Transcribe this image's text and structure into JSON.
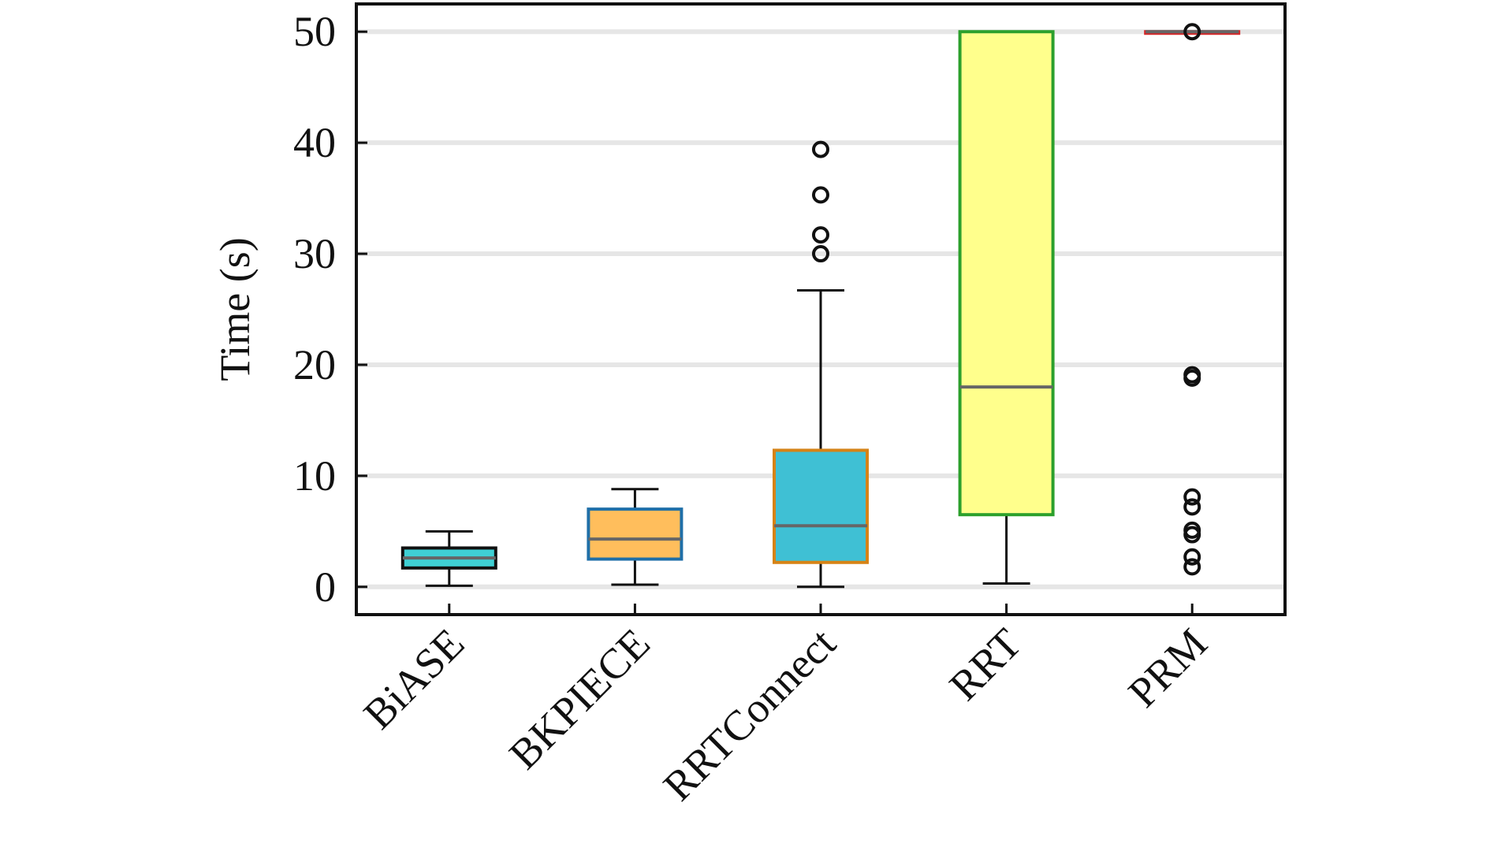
{
  "chart_data": {
    "type": "box",
    "title": "",
    "xlabel": "",
    "ylabel": "Time (s)",
    "ylim": [
      -2.5,
      52.5
    ],
    "yticks": [
      0,
      10,
      20,
      30,
      40,
      50
    ],
    "grid": "horizontal",
    "categories": [
      "BiASE",
      "BKPIECE",
      "RRTConnect",
      "RRT",
      "PRM"
    ],
    "boxes": [
      {
        "category": "BiASE",
        "whisker_low": 0.1,
        "q1": 1.7,
        "median": 2.6,
        "q3": 3.5,
        "whisker_high": 5.0,
        "outliers": [],
        "fill": "#3fd0d4",
        "edge": "#111111",
        "median_color": "#666666"
      },
      {
        "category": "BKPIECE",
        "whisker_low": 0.2,
        "q1": 2.5,
        "median": 4.3,
        "q3": 7.0,
        "whisker_high": 8.8,
        "outliers": [],
        "fill": "#ffbe5c",
        "edge": "#1f6fa8",
        "median_color": "#666666"
      },
      {
        "category": "RRTConnect",
        "whisker_low": 0.0,
        "q1": 2.2,
        "median": 5.5,
        "q3": 12.3,
        "whisker_high": 26.7,
        "outliers": [
          30.0,
          31.7,
          35.3,
          39.4
        ],
        "fill": "#3fc0d4",
        "edge": "#d68316",
        "median_color": "#666666"
      },
      {
        "category": "RRT",
        "whisker_low": 0.3,
        "q1": 6.5,
        "median": 18.0,
        "q3": 50.0,
        "whisker_high": 50.0,
        "outliers": [],
        "fill": "#ffff8c",
        "edge": "#2ca02c",
        "median_color": "#666666"
      },
      {
        "category": "PRM",
        "whisker_low": 50.0,
        "q1": 50.0,
        "median": 50.0,
        "q3": 50.0,
        "whisker_high": 50.0,
        "outliers": [
          1.8,
          2.7,
          4.7,
          5.1,
          7.2,
          8.1,
          18.8,
          19.1,
          50.0
        ],
        "fill": "#ffffff",
        "edge": "#d62728",
        "median_color": "#666666"
      }
    ]
  }
}
